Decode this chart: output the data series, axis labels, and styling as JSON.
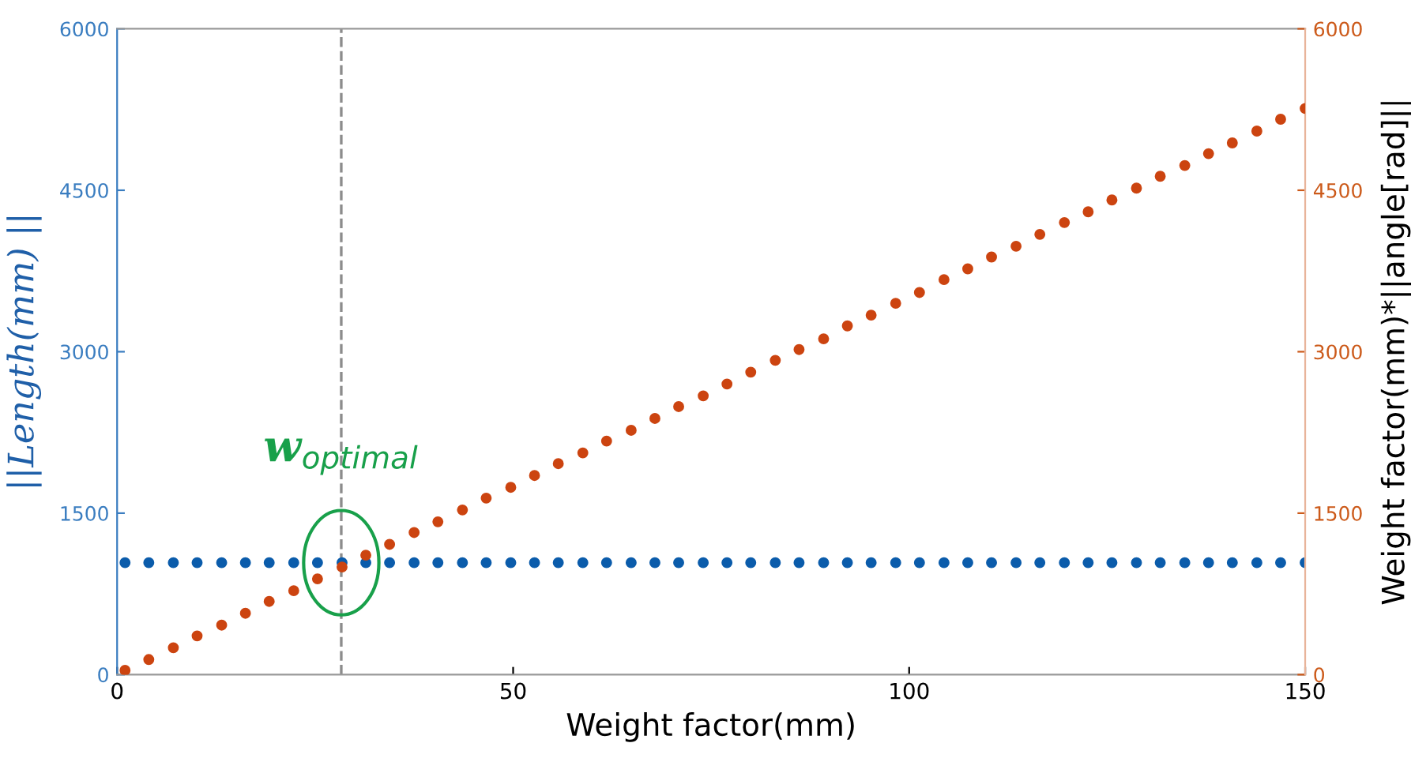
{
  "chart_data": {
    "type": "scatter",
    "xlabel": "Weight factor(mm)",
    "ylabel": "||Length(mm) ||",
    "y2label": "Weight factor(mm)*||angle[rad]||",
    "x": [
      1.0,
      4.0,
      7.1,
      10.1,
      13.2,
      16.2,
      19.2,
      22.3,
      25.3,
      28.4,
      31.4,
      34.4,
      37.5,
      40.5,
      43.6,
      46.6,
      49.7,
      52.7,
      55.7,
      58.8,
      61.8,
      64.9,
      67.9,
      70.9,
      74.0,
      77.0,
      80.0,
      83.1,
      86.1,
      89.2,
      92.2,
      95.2,
      98.3,
      101.3,
      104.4,
      107.4,
      110.4,
      113.5,
      116.5,
      119.6,
      122.6,
      125.6,
      128.7,
      131.7,
      134.8,
      137.8,
      140.8,
      143.9,
      146.9,
      150.0
    ],
    "series": [
      {
        "color": "#0b5cab",
        "values": [
          1040,
          1040,
          1040,
          1040,
          1040,
          1040,
          1040,
          1040,
          1040,
          1040,
          1040,
          1040,
          1040,
          1040,
          1040,
          1040,
          1040,
          1040,
          1040,
          1040,
          1040,
          1040,
          1040,
          1040,
          1040,
          1040,
          1040,
          1040,
          1040,
          1040,
          1040,
          1040,
          1040,
          1040,
          1040,
          1040,
          1040,
          1040,
          1040,
          1040,
          1040,
          1040,
          1040,
          1040,
          1040,
          1040,
          1040,
          1040,
          1040,
          1040
        ]
      },
      {
        "color": "#cc4410",
        "axis": "y2",
        "values": [
          40,
          140,
          250,
          360,
          460,
          570,
          680,
          780,
          890,
          1000,
          1110,
          1210,
          1320,
          1420,
          1530,
          1640,
          1740,
          1850,
          1960,
          2060,
          2170,
          2270,
          2380,
          2490,
          2590,
          2700,
          2810,
          2920,
          3020,
          3120,
          3240,
          3340,
          3450,
          3550,
          3670,
          3770,
          3880,
          3980,
          4090,
          4200,
          4300,
          4410,
          4520,
          4630,
          4730,
          4840,
          4940,
          5050,
          5160,
          5260
        ]
      }
    ],
    "xlim": [
      0,
      150
    ],
    "xticks": [
      0,
      50,
      100,
      150
    ],
    "ylim": [
      0,
      6000
    ],
    "yticks": [
      0,
      1500,
      3000,
      4500,
      6000
    ],
    "y2lim": [
      0,
      6000
    ],
    "y2ticks": [
      0,
      1500,
      3000,
      4500,
      6000
    ],
    "ref_lines": [
      {
        "axis": "x",
        "value": 28.3,
        "color": "#8c8c8c",
        "line_style": "dashed"
      }
    ],
    "annotations": [
      {
        "text": "w$_{optimal}$",
        "x": 28.3,
        "y": 1040
      }
    ],
    "marker": "circle",
    "grid": false,
    "legend": false
  }
}
